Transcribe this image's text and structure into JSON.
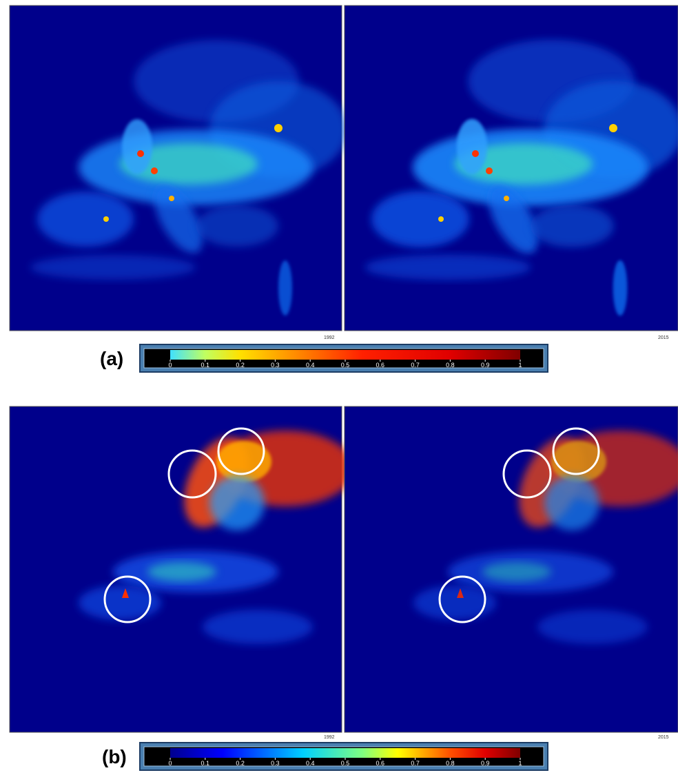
{
  "panels": [
    {
      "label": "(a)",
      "maps": [
        {
          "year": "1992"
        },
        {
          "year": "2015"
        }
      ],
      "colorbar": {
        "ticks": [
          0,
          0.1,
          0.2,
          0.3,
          0.4,
          0.5,
          0.6,
          0.7,
          0.8,
          0.9,
          1
        ]
      }
    },
    {
      "label": "(b)",
      "maps": [
        {
          "year": "1992"
        },
        {
          "year": "2015"
        }
      ],
      "colorbar": {
        "ticks": [
          0,
          0.1,
          0.2,
          0.3,
          0.4,
          0.5,
          0.6,
          0.7,
          0.8,
          0.9,
          1
        ]
      }
    }
  ]
}
